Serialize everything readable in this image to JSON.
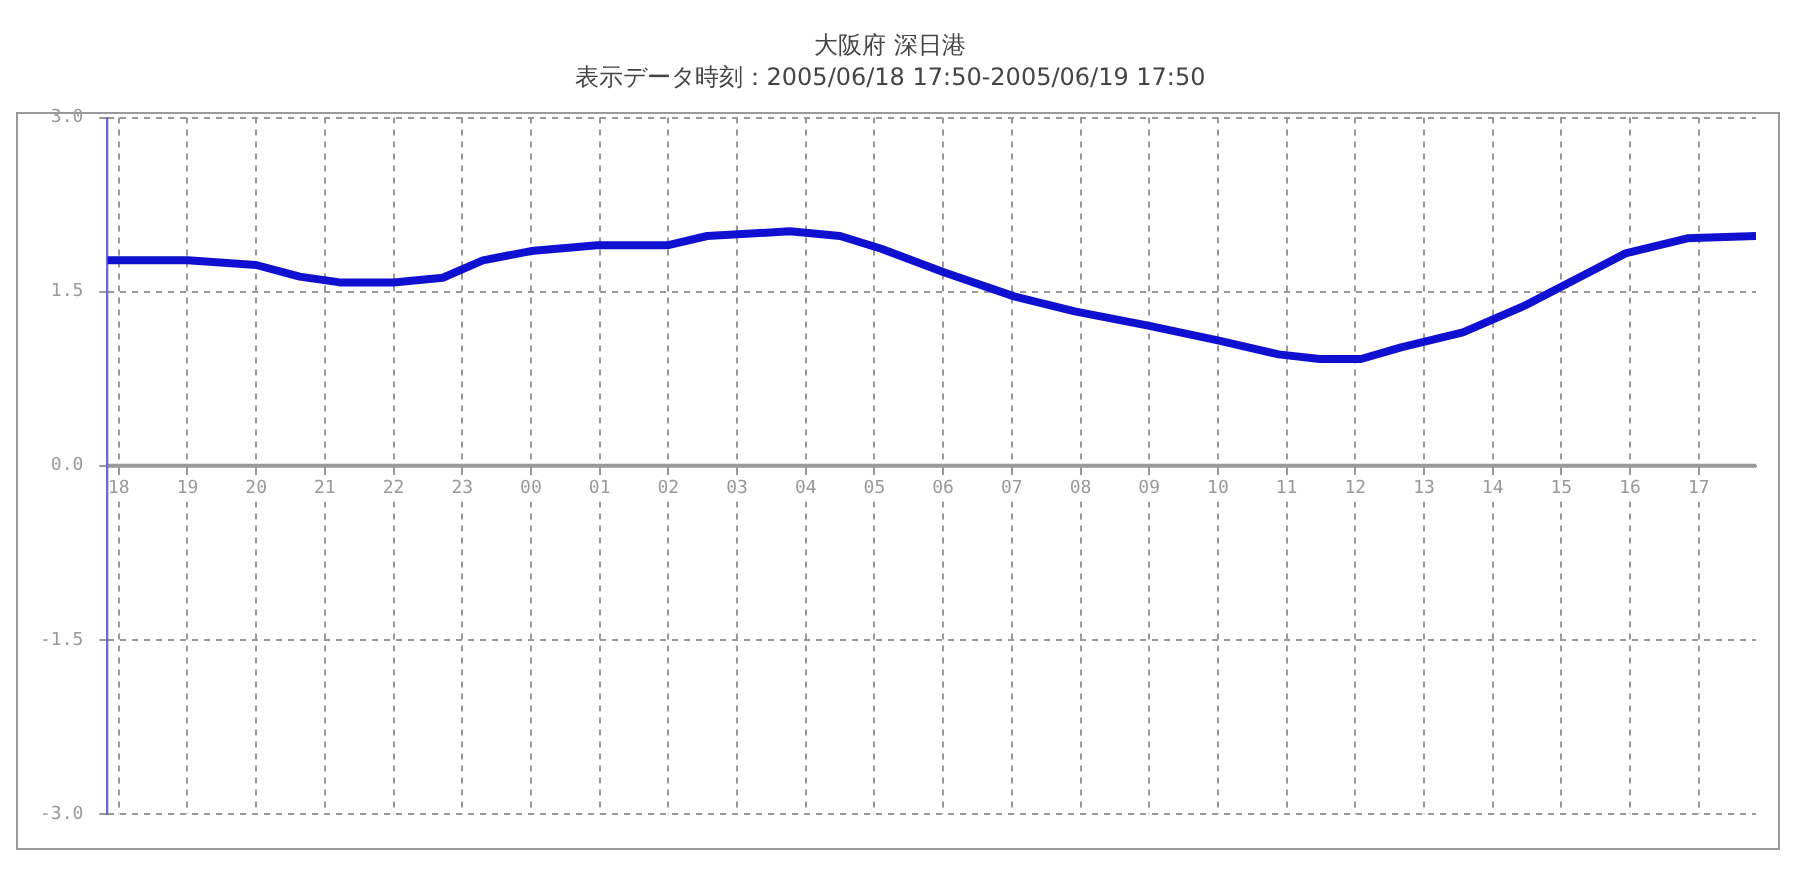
{
  "chart_data": {
    "type": "line",
    "title": "大阪府 深日港",
    "subtitle": "表示データ時刻：2005/06/18 17:50-2005/06/19 17:50",
    "x": [
      "2005-06-18T17:50",
      "2005-06-18T18:08",
      "2005-06-18T19:00",
      "2005-06-18T20:00",
      "2005-06-18T20:38",
      "2005-06-18T21:13",
      "2005-06-18T22:00",
      "2005-06-18T22:43",
      "2005-06-18T23:18",
      "2005-06-19T00:00",
      "2005-06-19T00:58",
      "2005-06-19T01:59",
      "2005-06-19T02:34",
      "2005-06-19T03:46",
      "2005-06-19T04:30",
      "2005-06-19T05:06",
      "2005-06-19T06:00",
      "2005-06-19T07:02",
      "2005-06-19T07:55",
      "2005-06-19T08:58",
      "2005-06-19T10:00",
      "2005-06-19T10:53",
      "2005-06-19T11:29",
      "2005-06-19T12:05",
      "2005-06-19T12:40",
      "2005-06-19T13:34",
      "2005-06-19T14:28",
      "2005-06-19T15:21",
      "2005-06-19T15:56",
      "2005-06-19T16:50",
      "2005-06-19T17:50"
    ],
    "series": [
      {
        "color": "#1010d0",
        "values": [
          1.77,
          1.77,
          1.77,
          1.73,
          1.63,
          1.58,
          1.58,
          1.62,
          1.77,
          1.85,
          1.9,
          1.9,
          1.98,
          2.02,
          1.98,
          1.87,
          1.67,
          1.46,
          1.33,
          1.21,
          1.08,
          0.96,
          0.92,
          0.92,
          1.02,
          1.15,
          1.38,
          1.65,
          1.83,
          1.96,
          1.98
        ]
      }
    ],
    "xlim": [
      "2005-06-18T17:50",
      "2005-06-19T17:50"
    ],
    "xticks": [
      {
        "value": "2005-06-18T18:00",
        "label": "18"
      },
      {
        "value": "2005-06-18T19:00",
        "label": "19"
      },
      {
        "value": "2005-06-18T20:00",
        "label": "20"
      },
      {
        "value": "2005-06-18T21:00",
        "label": "21"
      },
      {
        "value": "2005-06-18T22:00",
        "label": "22"
      },
      {
        "value": "2005-06-18T23:00",
        "label": "23"
      },
      {
        "value": "2005-06-19T00:00",
        "label": "00"
      },
      {
        "value": "2005-06-19T01:00",
        "label": "01"
      },
      {
        "value": "2005-06-19T02:00",
        "label": "02"
      },
      {
        "value": "2005-06-19T03:00",
        "label": "03"
      },
      {
        "value": "2005-06-19T04:00",
        "label": "04"
      },
      {
        "value": "2005-06-19T05:00",
        "label": "05"
      },
      {
        "value": "2005-06-19T06:00",
        "label": "06"
      },
      {
        "value": "2005-06-19T07:00",
        "label": "07"
      },
      {
        "value": "2005-06-19T08:00",
        "label": "08"
      },
      {
        "value": "2005-06-19T09:00",
        "label": "09"
      },
      {
        "value": "2005-06-19T10:00",
        "label": "10"
      },
      {
        "value": "2005-06-19T11:00",
        "label": "11"
      },
      {
        "value": "2005-06-19T12:00",
        "label": "12"
      },
      {
        "value": "2005-06-19T13:00",
        "label": "13"
      },
      {
        "value": "2005-06-19T14:00",
        "label": "14"
      },
      {
        "value": "2005-06-19T15:00",
        "label": "15"
      },
      {
        "value": "2005-06-19T16:00",
        "label": "16"
      },
      {
        "value": "2005-06-19T17:00",
        "label": "17"
      }
    ],
    "ylim": [
      -3,
      3
    ],
    "yticks": [
      {
        "value": 3,
        "label": "3.0"
      },
      {
        "value": 1.5,
        "label": "1.5"
      },
      {
        "value": 0,
        "label": "0.0"
      },
      {
        "value": -1.5,
        "label": "-1.5"
      },
      {
        "value": -3,
        "label": "-3.0"
      }
    ],
    "grid": true,
    "legend": false,
    "marker": "none",
    "line_style": "solid"
  }
}
